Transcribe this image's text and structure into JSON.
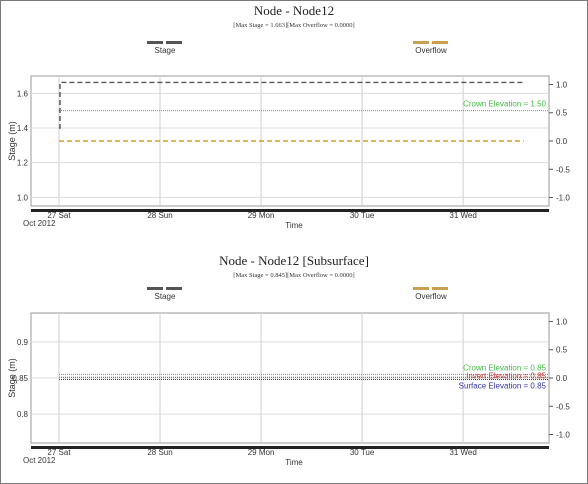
{
  "chart_data": [
    {
      "type": "line",
      "title": "Node - Node12",
      "subtitle": "[Max Stage = 1.663][Max Overflow = 0.0000]",
      "legend": [
        {
          "name": "Stage",
          "color": "#555555"
        },
        {
          "name": "Overflow",
          "color": "#c8a050"
        }
      ],
      "xlabel": "Time",
      "x_ticks": [
        "27 Sat",
        "28 Sun",
        "29 Mon",
        "30 Tue",
        "31 Wed"
      ],
      "x_origin_label": "Oct 2012",
      "ylabel": "Stage (m)",
      "ylim": [
        0.95,
        1.7
      ],
      "y_ticks": [
        1.0,
        1.2,
        1.4,
        1.6
      ],
      "y2_ticks": [
        1.0,
        0.5,
        0.0,
        -0.5,
        -1.0
      ],
      "y2lim": [
        -1.15,
        1.15
      ],
      "series": [
        {
          "name": "Stage",
          "color": "#555555",
          "style": "dashed",
          "x": [
            0,
            0.01,
            0.01,
            4.6
          ],
          "y": [
            1.4,
            1.4,
            1.663,
            1.663
          ]
        },
        {
          "name": "Overflow",
          "color": "#d4a020",
          "style": "dashed",
          "axis": "y2",
          "x": [
            0,
            4.6
          ],
          "y": [
            0.0,
            0.0
          ]
        }
      ],
      "reference_lines": [
        {
          "label": "Crown Elevation = 1.50",
          "value": 1.5,
          "color": "#44bb44"
        }
      ]
    },
    {
      "type": "line",
      "title": "Node - Node12 [Subsurface]",
      "subtitle": "[Max Stage = 0.845][Max Overflow = 0.0000]",
      "legend": [
        {
          "name": "Stage",
          "color": "#555555"
        },
        {
          "name": "Overflow",
          "color": "#c8a050"
        }
      ],
      "xlabel": "Time",
      "x_ticks": [
        "27 Sat",
        "28 Sun",
        "29 Mon",
        "30 Tue",
        "31 Wed"
      ],
      "x_origin_label": "Oct 2012",
      "ylabel": "Stage (m)",
      "ylim": [
        0.76,
        0.94
      ],
      "y_ticks": [
        0.8,
        0.85,
        0.9
      ],
      "y2_ticks": [
        1.0,
        0.5,
        0.0,
        -0.5,
        -1.0
      ],
      "y2lim": [
        -1.15,
        1.15
      ],
      "reference_lines": [
        {
          "label": "Crown Elevation = 0.85",
          "value": 0.855,
          "color": "#44bb44"
        },
        {
          "label": "Invert Elevation = 0.85",
          "value": 0.851,
          "color": "#c04040"
        },
        {
          "label": "Surface Elevation = 0.85",
          "value": 0.848,
          "color": "#3333aa"
        }
      ]
    }
  ]
}
